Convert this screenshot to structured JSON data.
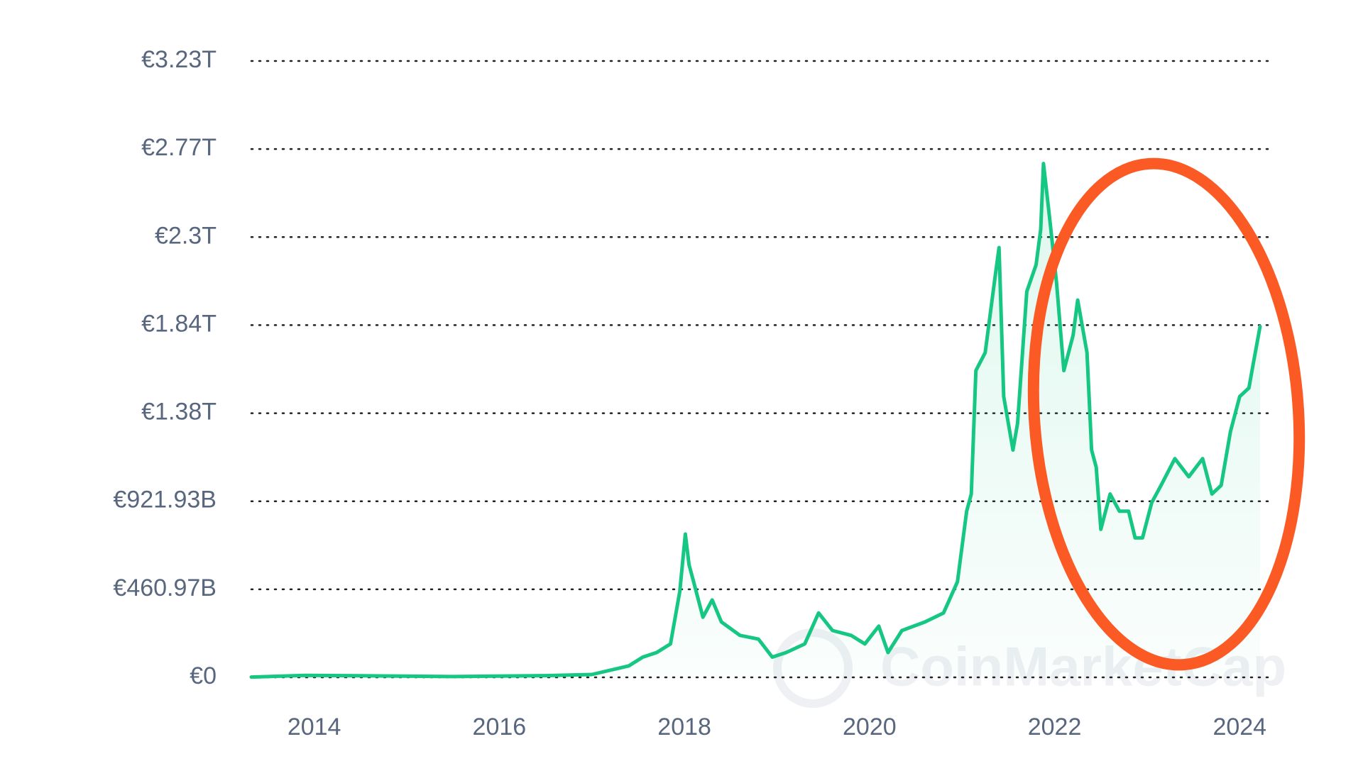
{
  "chart_data": {
    "type": "line",
    "watermark": "CoinMarketCap",
    "color": "#16c784",
    "grid": true,
    "x": [
      2013.32,
      2013.9,
      2014.5,
      2015.5,
      2016.5,
      2017.0,
      2017.4,
      2017.55,
      2017.7,
      2017.85,
      2017.95,
      2018.01,
      2018.05,
      2018.1,
      2018.2,
      2018.3,
      2018.4,
      2018.6,
      2018.8,
      2018.95,
      2019.1,
      2019.3,
      2019.45,
      2019.6,
      2019.8,
      2019.95,
      2020.1,
      2020.2,
      2020.35,
      2020.6,
      2020.8,
      2020.95,
      2021.05,
      2021.1,
      2021.15,
      2021.25,
      2021.35,
      2021.4,
      2021.45,
      2021.55,
      2021.6,
      2021.7,
      2021.8,
      2021.85,
      2021.88,
      2021.95,
      2022.02,
      2022.1,
      2022.2,
      2022.25,
      2022.35,
      2022.4,
      2022.45,
      2022.5,
      2022.6,
      2022.7,
      2022.8,
      2022.87,
      2022.95,
      2023.05,
      2023.15,
      2023.3,
      2023.45,
      2023.6,
      2023.7,
      2023.8,
      2023.9,
      2024.0,
      2024.1,
      2024.15,
      2024.22
    ],
    "values": [
      1500000000.0,
      10000000000.0,
      8000000000.0,
      4000000000.0,
      9000000000.0,
      15000000000.0,
      60000000000.0,
      106000000000.0,
      130000000000.0,
      175000000000.0,
      450000000000.0,
      750000000000.0,
      590000000000.0,
      500000000000.0,
      315000000000.0,
      405000000000.0,
      290000000000.0,
      220000000000.0,
      200000000000.0,
      106000000000.0,
      130000000000.0,
      175000000000.0,
      337000000000.0,
      245000000000.0,
      220000000000.0,
      175000000000.0,
      268000000000.0,
      130000000000.0,
      245000000000.0,
      290000000000.0,
      337000000000.0,
      500000000000.0,
      870000000000.0,
      960000000000.0,
      1606000000000.0,
      1700000000000.0,
      2070000000000.0,
      2250000000000.0,
      1470000000000.0,
      1190000000000.0,
      1330000000000.0,
      2020000000000.0,
      2160000000000.0,
      2345000000000.0,
      2690000000000.0,
      2390000000000.0,
      2070000000000.0,
      1606000000000.0,
      1790000000000.0,
      1975000000000.0,
      1700000000000.0,
      1190000000000.0,
      1100000000000.0,
      775000000000.0,
      960000000000.0,
      870000000000.0,
      870000000000.0,
      730000000000.0,
      730000000000.0,
      915000000000.0,
      1005000000000.0,
      1145000000000.0,
      1050000000000.0,
      1145000000000.0,
      960000000000.0,
      1005000000000.0,
      1285000000000.0,
      1470000000000.0,
      1515000000000.0,
      1650000000000.0,
      1837000000000.0
    ],
    "xlim": [
      2013.32,
      2024.32
    ],
    "xticks": [
      2014,
      2016,
      2018,
      2020,
      2022,
      2024
    ],
    "ylim": [
      0,
      3226760000000
    ],
    "yticks": [
      {
        "value": 0,
        "label": "€0"
      },
      {
        "value": 460970000000,
        "label": "€460.97B"
      },
      {
        "value": 921930000000,
        "label": "€921.93B"
      },
      {
        "value": 1382900000000,
        "label": "€1.38T"
      },
      {
        "value": 1843860000000,
        "label": "€1.84T"
      },
      {
        "value": 2304830000000,
        "label": "€2.3T"
      },
      {
        "value": 2765790000000,
        "label": "€2.77T"
      },
      {
        "value": 3226760000000,
        "label": "€3.23T"
      }
    ]
  }
}
